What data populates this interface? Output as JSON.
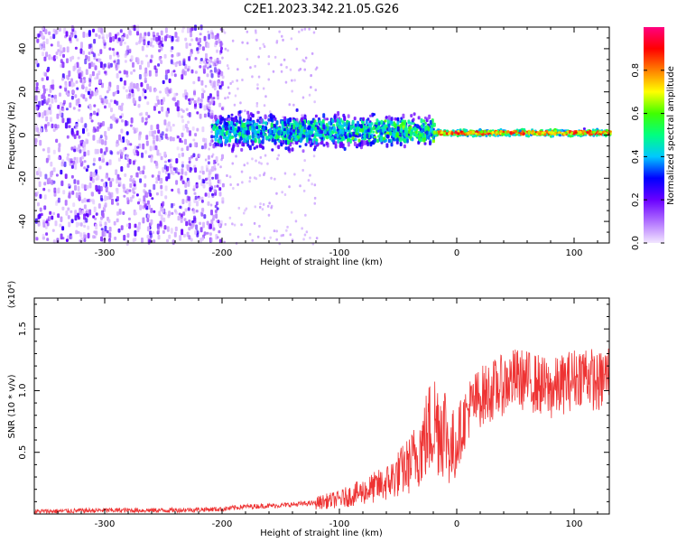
{
  "title": "C2E1.2023.342.21.05.G26",
  "chart_data": [
    {
      "type": "heatmap",
      "xlabel": "Height of straight line (km)",
      "ylabel": "Frequency (Hz)",
      "xlim": [
        -360,
        130
      ],
      "ylim": [
        -50,
        50
      ],
      "xticks": [
        -300,
        -200,
        -100,
        0,
        100
      ],
      "yticks": [
        -40,
        -20,
        0,
        20,
        40
      ],
      "colorbar": {
        "label": "Normalized spectral amplitude",
        "range": [
          0,
          1
        ],
        "ticks": [
          0.0,
          0.2,
          0.4,
          0.6,
          0.8
        ],
        "colormap": [
          "#f2e6ff",
          "#b070ff",
          "#6a00ff",
          "#0000ff",
          "#00c8ff",
          "#00ff80",
          "#40ff00",
          "#ffff00",
          "#ff8000",
          "#ff0000",
          "#ff0080"
        ]
      },
      "regions": [
        {
          "x_from": -360,
          "x_to": -210,
          "freq_spread": 50,
          "amplitude": 0.15,
          "note": "broadband noise"
        },
        {
          "x_from": -210,
          "x_to": -20,
          "freq_center": 2,
          "freq_spread": 12,
          "amplitude": 0.35
        },
        {
          "x_from": -20,
          "x_to": 130,
          "freq_center": 1,
          "freq_spread": 2,
          "amplitude": 0.8
        }
      ]
    },
    {
      "type": "line",
      "xlabel": "Height of straight line (km)",
      "ylabel": "SNR (10 * v/v)",
      "y_multiplier": "(x10⁴)",
      "xlim": [
        -360,
        130
      ],
      "ylim": [
        0,
        1.75
      ],
      "xticks": [
        -300,
        -200,
        -100,
        0,
        100
      ],
      "yticks": [
        0.5,
        1.0,
        1.5
      ],
      "ytick_labels": [
        "0.5",
        "1.0",
        "1.5"
      ],
      "series": [
        {
          "color": "#ee3333",
          "x": [
            -360,
            -300,
            -250,
            -200,
            -180,
            -150,
            -120,
            -100,
            -80,
            -60,
            -40,
            -30,
            -20,
            -10,
            -5,
            0,
            10,
            20,
            30,
            40,
            50,
            60,
            70,
            80,
            90,
            100,
            110,
            120,
            130
          ],
          "y": [
            0.02,
            0.03,
            0.03,
            0.04,
            0.06,
            0.07,
            0.09,
            0.12,
            0.18,
            0.25,
            0.4,
            0.55,
            0.75,
            0.7,
            0.5,
            0.6,
            0.85,
            0.95,
            1.0,
            1.05,
            1.1,
            1.08,
            1.05,
            1.0,
            1.05,
            1.1,
            1.15,
            1.05,
            1.15
          ]
        }
      ]
    }
  ]
}
